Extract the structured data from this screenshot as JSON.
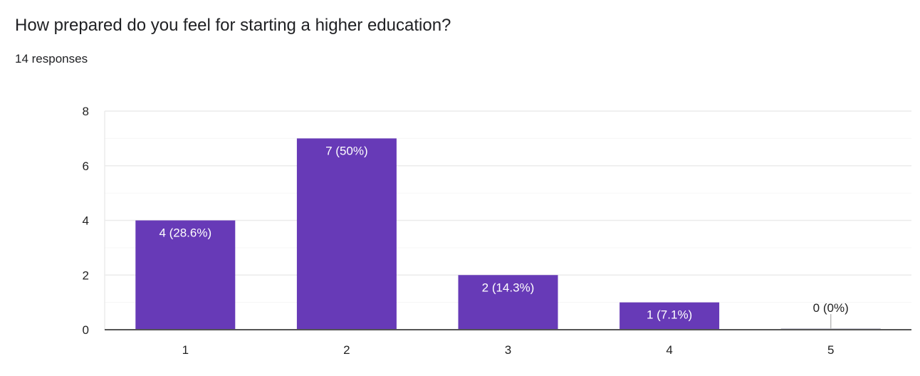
{
  "question": {
    "title": "How prepared do you feel for starting a higher education?",
    "responses": "14 responses"
  },
  "chart_data": {
    "type": "bar",
    "categories": [
      "1",
      "2",
      "3",
      "4",
      "5"
    ],
    "values": [
      4,
      7,
      2,
      1,
      0
    ],
    "data_labels": [
      "4 (28.6%)",
      "7 (50%)",
      "2 (14.3%)",
      "1 (7.1%)",
      "0 (0%)"
    ],
    "yticks": [
      0,
      2,
      4,
      6,
      8
    ],
    "ylim": [
      0,
      8
    ],
    "grid": true,
    "bar_color": "#673ab7",
    "title": "How prepared do you feel for starting a higher education?",
    "xlabel": "",
    "ylabel": ""
  }
}
